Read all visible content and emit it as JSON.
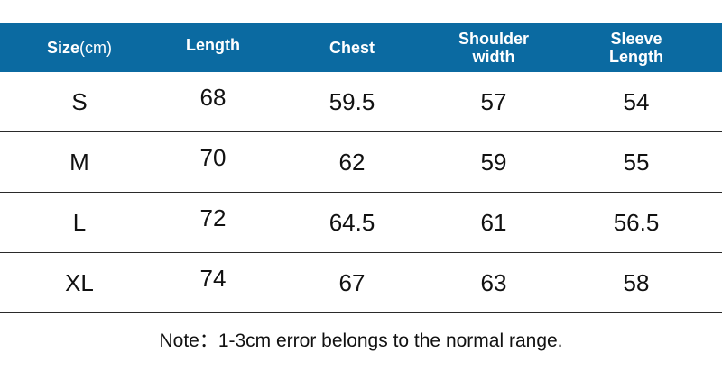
{
  "header": {
    "size_label": "Size",
    "size_unit": "(cm)",
    "length": "Length",
    "chest": "Chest",
    "shoulder_width": "Shoulder\nwidth",
    "sleeve_length": "Sleeve\nLength"
  },
  "rows": [
    {
      "size": "S",
      "length": "68",
      "chest": "59.5",
      "shoulder": "57",
      "sleeve": "54"
    },
    {
      "size": "M",
      "length": "70",
      "chest": "62",
      "shoulder": "59",
      "sleeve": "55"
    },
    {
      "size": "L",
      "length": "72",
      "chest": "64.5",
      "shoulder": "61",
      "sleeve": "56.5"
    },
    {
      "size": "XL",
      "length": "74",
      "chest": "67",
      "shoulder": "63",
      "sleeve": "58"
    }
  ],
  "note": "Note：1-3cm error belongs to the normal range.",
  "colors": {
    "header_bg": "#0b6aa1",
    "header_text": "#ffffff"
  }
}
